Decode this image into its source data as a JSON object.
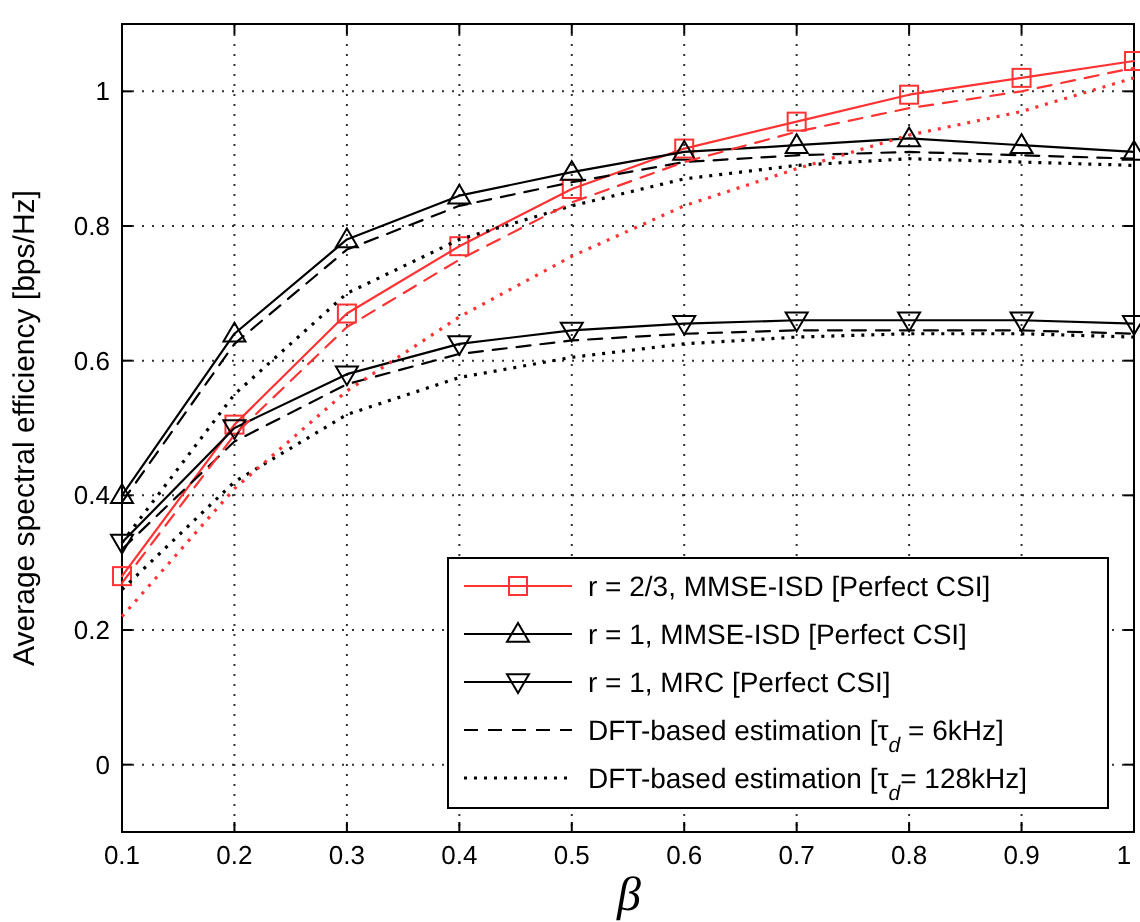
{
  "chart_data": {
    "type": "line",
    "xlabel": "β",
    "ylabel": "Average spectral efficiency [bps/Hz]",
    "x": [
      0.1,
      0.2,
      0.3,
      0.4,
      0.5,
      0.6,
      0.7,
      0.8,
      0.9,
      1
    ],
    "xlim": [
      0.1,
      1
    ],
    "xticks": [
      0.1,
      0.2,
      0.3,
      0.4,
      0.5,
      0.6,
      0.7,
      0.8,
      0.9,
      1
    ],
    "ylim": [
      -0.1,
      1.1
    ],
    "yticks": [
      0,
      0.2,
      0.4,
      0.6,
      0.8,
      1
    ],
    "grid": true,
    "legend": "bottom right",
    "series": [
      {
        "name": "r = 2/3, MMSE-ISD [Perfect CSI]",
        "color": "#ff3333",
        "marker": "square",
        "line_style": "solid",
        "values": [
          0.28,
          0.505,
          0.67,
          0.77,
          0.855,
          0.915,
          0.955,
          0.995,
          1.02,
          1.045
        ]
      },
      {
        "name": "r = 1, MMSE-ISD [Perfect CSI]",
        "color": "#000000",
        "marker": "triangle",
        "line_style": "solid",
        "values": [
          0.4,
          0.64,
          0.78,
          0.845,
          0.88,
          0.91,
          0.92,
          0.93,
          0.92,
          0.91
        ]
      },
      {
        "name": "r = 1, MRC [Perfect CSI]",
        "color": "#000000",
        "marker": "triangle-down",
        "line_style": "solid",
        "values": [
          0.33,
          0.5,
          0.58,
          0.625,
          0.645,
          0.655,
          0.66,
          0.66,
          0.66,
          0.655
        ]
      },
      {
        "name": "DFT-based estimation  [τ$_{d}$ = 6kHz]",
        "color": "#000000",
        "marker": "none",
        "line_style": "dashed",
        "values": [
          0.39,
          0.625,
          0.765,
          0.83,
          0.865,
          0.895,
          0.905,
          0.91,
          0.905,
          0.9
        ]
      },
      {
        "name": "DFT-based estimation  [τ$_{d}$= 128kHz]",
        "color": "#000000",
        "marker": "none",
        "line_style": "dotted",
        "values": [
          0.33,
          0.55,
          0.7,
          0.78,
          0.83,
          0.87,
          0.89,
          0.9,
          0.895,
          0.89
        ]
      },
      {
        "color": "#000000",
        "marker": "none",
        "line_style": "dashed",
        "values": [
          0.32,
          0.48,
          0.565,
          0.61,
          0.63,
          0.64,
          0.645,
          0.645,
          0.645,
          0.64
        ]
      },
      {
        "color": "#000000",
        "marker": "none",
        "line_style": "dotted",
        "values": [
          0.26,
          0.42,
          0.52,
          0.575,
          0.605,
          0.625,
          0.635,
          0.64,
          0.64,
          0.635
        ]
      },
      {
        "color": "#ff3333",
        "marker": "none",
        "line_style": "dashed",
        "values": [
          0.27,
          0.49,
          0.65,
          0.75,
          0.835,
          0.895,
          0.94,
          0.975,
          1.0,
          1.035
        ]
      },
      {
        "color": "#ff3333",
        "marker": "none",
        "line_style": "dotted",
        "values": [
          0.22,
          0.41,
          0.555,
          0.665,
          0.755,
          0.83,
          0.885,
          0.935,
          0.97,
          1.02
        ]
      }
    ]
  }
}
